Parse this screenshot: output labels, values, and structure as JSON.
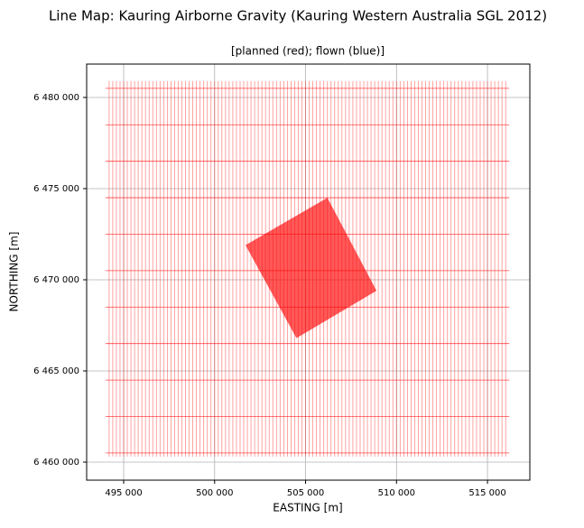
{
  "chart_data": {
    "type": "line-map",
    "title": "Line Map: Kauring Airborne Gravity (Kauring Western Australia SGL 2012)",
    "subtitle": "[planned (red); flown (blue)]",
    "xlabel": "EASTING [m]",
    "ylabel": "NORTHING [m]",
    "xlim": [
      492965,
      517330
    ],
    "ylim": [
      6459010,
      6481830
    ],
    "xticks": [
      {
        "value": 495000,
        "label": "495 000"
      },
      {
        "value": 500000,
        "label": "500 000"
      },
      {
        "value": 505000,
        "label": "505 000"
      },
      {
        "value": 510000,
        "label": "510 000"
      },
      {
        "value": 515000,
        "label": "515 000"
      }
    ],
    "yticks": [
      {
        "value": 6460000,
        "label": "6 460 000"
      },
      {
        "value": 6465000,
        "label": "6 465 000"
      },
      {
        "value": 6470000,
        "label": "6 470 000"
      },
      {
        "value": 6475000,
        "label": "6 475 000"
      },
      {
        "value": 6480000,
        "label": "6 480 000"
      }
    ],
    "grid": true,
    "color": "#ff0000",
    "traverse_lines": {
      "x": [
        494200,
        494400,
        494600,
        494800,
        495000,
        495200,
        495400,
        495600,
        495800,
        496000,
        496200,
        496400,
        496600,
        496800,
        497000,
        497200,
        497400,
        497600,
        497800,
        498000,
        498200,
        498400,
        498600,
        498800,
        499000,
        499200,
        499400,
        499600,
        499800,
        500000,
        500200,
        500400,
        500600,
        500800,
        501000,
        501200,
        501400,
        501600,
        501800,
        502000,
        502200,
        502400,
        502600,
        502800,
        503000,
        503200,
        503400,
        503600,
        503800,
        504000,
        504200,
        504400,
        504600,
        504800,
        505000,
        505200,
        505400,
        505600,
        505800,
        506000,
        506200,
        506400,
        506600,
        506800,
        507000,
        507200,
        507400,
        507600,
        507800,
        508000,
        508200,
        508400,
        508600,
        508800,
        509000,
        509200,
        509400,
        509600,
        509800,
        510000,
        510200,
        510400,
        510600,
        510800,
        511000,
        511200,
        511400,
        511600,
        511800,
        512000,
        512200,
        512400,
        512600,
        512800,
        513000,
        513200,
        513400,
        513600,
        513800,
        514000,
        514200,
        514400,
        514600,
        514800,
        515000,
        515200,
        515400,
        515600,
        515800,
        516000
      ],
      "y_range": [
        6460300,
        6480900
      ]
    },
    "tie_lines": {
      "y": [
        6460500,
        6462500,
        6464500,
        6466500,
        6468500,
        6470500,
        6472500,
        6474500,
        6476500,
        6478500,
        6480500
      ],
      "x_range": [
        494000,
        516200
      ]
    },
    "block": {
      "x": [
        501700,
        506200,
        508900,
        504500
      ],
      "y": [
        6471900,
        6474500,
        6469400,
        6466800
      ]
    }
  }
}
